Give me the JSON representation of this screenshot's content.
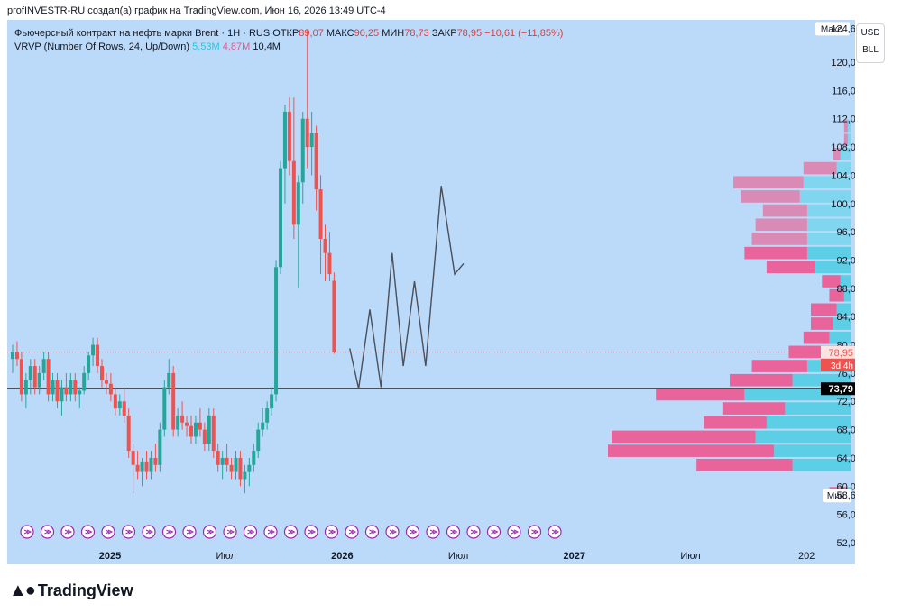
{
  "header": {
    "attribution": "profINVESTR-RU создал(а) график на TradingView.com, Июн 16, 2026 13:49 UTC-4"
  },
  "legend": {
    "instrument": "Фьючерсный контракт на нефть марки Brent · 1H · RUS",
    "open_label": "ОТКР",
    "open_value": "89,07",
    "high_label": "МАКС",
    "high_value": "90,25",
    "low_label": "МИН",
    "low_value": "78,73",
    "close_label": "ЗАКР",
    "close_value": "78,95",
    "change_value": "−10,61 (−11,85%)",
    "vrvp_label": "VRVP (Number Of Rows, 24, Up/Down)",
    "vrvp_up": "5,53M",
    "vrvp_down": "4,87M",
    "vrvp_total": "10,4M"
  },
  "units": {
    "currency": "USD",
    "unit": "BLL"
  },
  "footer": {
    "brand": "TradingView"
  },
  "colors": {
    "background": "#bbdaf9",
    "up": "#26a69a",
    "down": "#ef5350",
    "vol_up": "#5ccfe6",
    "vol_down": "#e8649b",
    "vol_up_va": "#7fd6ee",
    "vol_down_va": "#d98bb6"
  },
  "chart_data": {
    "type": "candlestick",
    "y_axis": {
      "ylim": [
        52,
        126
      ],
      "ticks": [
        "52,00",
        "56,00",
        "60,00",
        "64,00",
        "68,00",
        "72,00",
        "76,00",
        "80,00",
        "84,00",
        "88,00",
        "92,00",
        "96,00",
        "100,00",
        "104,00",
        "108,00",
        "112,00",
        "116,00",
        "120,00"
      ],
      "tick_values": [
        52,
        56,
        60,
        64,
        68,
        72,
        76,
        80,
        84,
        88,
        92,
        96,
        100,
        104,
        108,
        112,
        116,
        120
      ],
      "max_label": "Макс.",
      "max_value": 124.67,
      "max_text": "124,67",
      "min_label": "Мин.",
      "min_value": 58.61,
      "min_text": "58,61",
      "last_price": 78.95,
      "last_price_text": "78,95",
      "countdown_text": "3d 4h",
      "hline_value": 73.79,
      "hline_text": "73,79"
    },
    "x_axis": {
      "labels": [
        "2025",
        "Июл",
        "2026",
        "Июл",
        "2027",
        "Июл",
        "202"
      ],
      "label_t": [
        0,
        26,
        52,
        78,
        104,
        130,
        156
      ]
    },
    "candles": [
      {
        "o": 78,
        "h": 80,
        "l": 76,
        "c": 79
      },
      {
        "o": 79,
        "h": 80.5,
        "l": 77,
        "c": 78
      },
      {
        "o": 78,
        "h": 79,
        "l": 72,
        "c": 73
      },
      {
        "o": 73,
        "h": 76,
        "l": 71,
        "c": 75
      },
      {
        "o": 75,
        "h": 78,
        "l": 73,
        "c": 77
      },
      {
        "o": 77,
        "h": 78,
        "l": 73,
        "c": 74
      },
      {
        "o": 74,
        "h": 77,
        "l": 73,
        "c": 76
      },
      {
        "o": 76,
        "h": 79,
        "l": 75,
        "c": 78
      },
      {
        "o": 78,
        "h": 79,
        "l": 72,
        "c": 73
      },
      {
        "o": 73,
        "h": 76,
        "l": 72,
        "c": 75
      },
      {
        "o": 75,
        "h": 76,
        "l": 71,
        "c": 72
      },
      {
        "o": 72,
        "h": 75,
        "l": 70,
        "c": 74
      },
      {
        "o": 74,
        "h": 76,
        "l": 72,
        "c": 73
      },
      {
        "o": 73,
        "h": 76,
        "l": 72,
        "c": 75
      },
      {
        "o": 75,
        "h": 76,
        "l": 72,
        "c": 73
      },
      {
        "o": 73,
        "h": 74,
        "l": 71,
        "c": 73.5
      },
      {
        "o": 73.5,
        "h": 77,
        "l": 73,
        "c": 76
      },
      {
        "o": 76,
        "h": 79,
        "l": 75,
        "c": 78.5
      },
      {
        "o": 78.5,
        "h": 81,
        "l": 77,
        "c": 80
      },
      {
        "o": 80,
        "h": 81,
        "l": 76,
        "c": 77
      },
      {
        "o": 77,
        "h": 78,
        "l": 74,
        "c": 75
      },
      {
        "o": 75,
        "h": 76,
        "l": 73,
        "c": 74.5
      },
      {
        "o": 74.5,
        "h": 76,
        "l": 72,
        "c": 73
      },
      {
        "o": 73,
        "h": 74,
        "l": 70,
        "c": 71
      },
      {
        "o": 71,
        "h": 73,
        "l": 70,
        "c": 72
      },
      {
        "o": 72,
        "h": 74,
        "l": 69,
        "c": 70
      },
      {
        "o": 70,
        "h": 71,
        "l": 64,
        "c": 65
      },
      {
        "o": 65,
        "h": 66,
        "l": 59,
        "c": 63
      },
      {
        "o": 63,
        "h": 65,
        "l": 61,
        "c": 62
      },
      {
        "o": 62,
        "h": 64,
        "l": 60,
        "c": 63.5
      },
      {
        "o": 63.5,
        "h": 65,
        "l": 61,
        "c": 62
      },
      {
        "o": 62,
        "h": 65,
        "l": 61,
        "c": 64
      },
      {
        "o": 64,
        "h": 66,
        "l": 62,
        "c": 63
      },
      {
        "o": 63,
        "h": 69,
        "l": 62,
        "c": 68
      },
      {
        "o": 68,
        "h": 75,
        "l": 67,
        "c": 74
      },
      {
        "o": 74,
        "h": 78,
        "l": 73,
        "c": 76
      },
      {
        "o": 76,
        "h": 77,
        "l": 67,
        "c": 68
      },
      {
        "o": 68,
        "h": 71,
        "l": 67,
        "c": 70
      },
      {
        "o": 70,
        "h": 72,
        "l": 68,
        "c": 69
      },
      {
        "o": 69,
        "h": 70,
        "l": 67,
        "c": 68.5
      },
      {
        "o": 68.5,
        "h": 70,
        "l": 66,
        "c": 67
      },
      {
        "o": 67,
        "h": 70,
        "l": 66,
        "c": 69
      },
      {
        "o": 69,
        "h": 71,
        "l": 67,
        "c": 68
      },
      {
        "o": 68,
        "h": 69,
        "l": 65,
        "c": 66
      },
      {
        "o": 66,
        "h": 71,
        "l": 65,
        "c": 70
      },
      {
        "o": 70,
        "h": 71,
        "l": 64,
        "c": 65
      },
      {
        "o": 65,
        "h": 66,
        "l": 62,
        "c": 63
      },
      {
        "o": 63,
        "h": 65,
        "l": 61,
        "c": 64
      },
      {
        "o": 64,
        "h": 66,
        "l": 62,
        "c": 63
      },
      {
        "o": 63,
        "h": 64,
        "l": 61,
        "c": 62
      },
      {
        "o": 62,
        "h": 65,
        "l": 61,
        "c": 64
      },
      {
        "o": 64,
        "h": 65,
        "l": 60,
        "c": 61
      },
      {
        "o": 61,
        "h": 63,
        "l": 59,
        "c": 62
      },
      {
        "o": 62,
        "h": 64,
        "l": 60,
        "c": 63
      },
      {
        "o": 63,
        "h": 66,
        "l": 62,
        "c": 65
      },
      {
        "o": 65,
        "h": 69,
        "l": 64,
        "c": 68
      },
      {
        "o": 68,
        "h": 71,
        "l": 67,
        "c": 69
      },
      {
        "o": 69,
        "h": 72,
        "l": 68,
        "c": 71
      },
      {
        "o": 71,
        "h": 74,
        "l": 70,
        "c": 73
      },
      {
        "o": 73,
        "h": 92,
        "l": 72,
        "c": 91
      },
      {
        "o": 91,
        "h": 106,
        "l": 90,
        "c": 105
      },
      {
        "o": 105,
        "h": 114,
        "l": 100,
        "c": 113
      },
      {
        "o": 113,
        "h": 115,
        "l": 104,
        "c": 106
      },
      {
        "o": 106,
        "h": 115,
        "l": 95,
        "c": 97
      },
      {
        "o": 97,
        "h": 104,
        "l": 88,
        "c": 103
      },
      {
        "o": 103,
        "h": 113,
        "l": 100,
        "c": 112
      },
      {
        "o": 112,
        "h": 124.67,
        "l": 105,
        "c": 108
      },
      {
        "o": 108,
        "h": 113,
        "l": 104,
        "c": 110
      },
      {
        "o": 110,
        "h": 111,
        "l": 99,
        "c": 102
      },
      {
        "o": 102,
        "h": 104,
        "l": 90,
        "c": 95
      },
      {
        "o": 95,
        "h": 97,
        "l": 89,
        "c": 93
      },
      {
        "o": 93,
        "h": 96,
        "l": 89,
        "c": 90
      },
      {
        "o": 89.07,
        "h": 90.25,
        "l": 78.73,
        "c": 78.95
      }
    ],
    "forecast_path": [
      [
        75.5,
        79.5
      ],
      [
        77.5,
        73.8
      ],
      [
        80,
        85
      ],
      [
        82.5,
        74
      ],
      [
        85,
        93
      ],
      [
        87.5,
        77
      ],
      [
        90,
        89
      ],
      [
        92.5,
        77
      ],
      [
        96,
        102.5
      ],
      [
        99,
        90
      ],
      [
        101,
        91.5
      ]
    ],
    "volume_profile": [
      {
        "low": 58,
        "high": 60,
        "up": 0.1,
        "down": 0.5
      },
      {
        "low": 60,
        "high": 62,
        "up": 0,
        "down": 0
      },
      {
        "low": 62,
        "high": 64,
        "up": 1.6,
        "down": 2.6
      },
      {
        "low": 64,
        "high": 66,
        "up": 2.1,
        "down": 4.5
      },
      {
        "low": 66,
        "high": 68,
        "up": 2.6,
        "down": 3.9
      },
      {
        "low": 68,
        "high": 70,
        "up": 2.3,
        "down": 1.7
      },
      {
        "low": 70,
        "high": 72,
        "up": 1.8,
        "down": 1.7
      },
      {
        "low": 72,
        "high": 74,
        "up": 2.9,
        "down": 2.4
      },
      {
        "low": 74,
        "high": 76,
        "up": 1.6,
        "down": 1.7
      },
      {
        "low": 76,
        "high": 78,
        "up": 1.2,
        "down": 1.5
      },
      {
        "low": 78,
        "high": 80,
        "up": 0.8,
        "down": 0.9
      },
      {
        "low": 80,
        "high": 82,
        "up": 0.6,
        "down": 0.7
      },
      {
        "low": 82,
        "high": 84,
        "up": 0.5,
        "down": 0.6
      },
      {
        "low": 84,
        "high": 86,
        "up": 0.4,
        "down": 0.7
      },
      {
        "low": 86,
        "high": 88,
        "up": 0.2,
        "down": 0.4
      },
      {
        "low": 88,
        "high": 90,
        "up": 0.3,
        "down": 0.5
      },
      {
        "low": 90,
        "high": 92,
        "up": 1.0,
        "down": 1.3
      },
      {
        "low": 92,
        "high": 94,
        "up": 1.2,
        "down": 1.7
      },
      {
        "low": 94,
        "high": 96,
        "up": 1.2,
        "down": 1.5
      },
      {
        "low": 96,
        "high": 98,
        "up": 1.2,
        "down": 1.4
      },
      {
        "low": 98,
        "high": 100,
        "up": 1.2,
        "down": 1.2
      },
      {
        "low": 100,
        "high": 102,
        "up": 1.4,
        "down": 1.6
      },
      {
        "low": 102,
        "high": 104,
        "up": 1.3,
        "down": 1.9
      },
      {
        "low": 104,
        "high": 106,
        "up": 0.4,
        "down": 0.9
      },
      {
        "low": 106,
        "high": 108,
        "up": 0.3,
        "down": 0.2
      },
      {
        "low": 108,
        "high": 110,
        "up": 0.1,
        "down": 0.1
      },
      {
        "low": 110,
        "high": 112,
        "up": 0.1,
        "down": 0.1
      }
    ],
    "event_markers_count": 27
  }
}
